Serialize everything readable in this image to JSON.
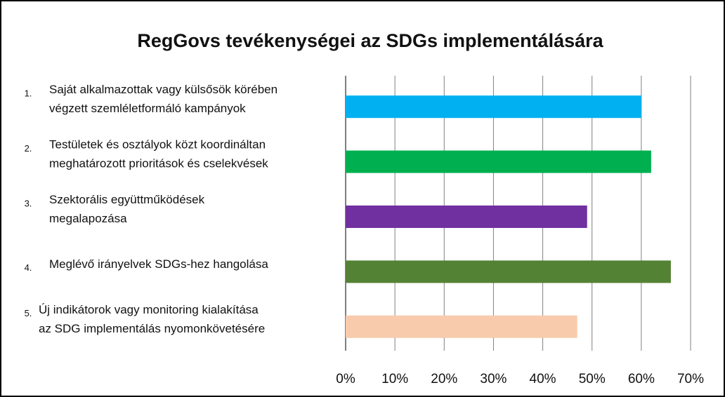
{
  "chart_data": {
    "type": "bar",
    "orientation": "horizontal",
    "title": "RegGovs tevékenységei az SDGs implementálására",
    "category_numbers": [
      "1.",
      "2.",
      "3.",
      "4.",
      "5."
    ],
    "categories": [
      [
        "Saját alkalmazottak vagy külsősök körében",
        "végzett szemléletformáló kampányok"
      ],
      [
        "Testületek és osztályok közt koordináltan",
        "meghatározott prioritások és cselekvések"
      ],
      [
        "Szektorális együttműködések",
        "megalapozása"
      ],
      [
        "Meglévő irányelvek SDGs-hez hangolása"
      ],
      [
        "Új indikátorok vagy monitoring kialakítása",
        "az SDG implementálás nyomonkövetésére"
      ]
    ],
    "values": [
      60,
      62,
      49,
      66,
      47
    ],
    "colors": [
      "#00b0f0",
      "#00b050",
      "#7030a0",
      "#548235",
      "#f8cbad"
    ],
    "xlim": [
      0,
      70
    ],
    "xticks": [
      {
        "value": 0,
        "label": "0%"
      },
      {
        "value": 10,
        "label": "10%"
      },
      {
        "value": 20,
        "label": "20%"
      },
      {
        "value": 30,
        "label": "30%"
      },
      {
        "value": 40,
        "label": "40%"
      },
      {
        "value": 50,
        "label": "50%"
      },
      {
        "value": 60,
        "label": "60%"
      },
      {
        "value": 70,
        "label": "70%"
      }
    ],
    "grid": true
  }
}
